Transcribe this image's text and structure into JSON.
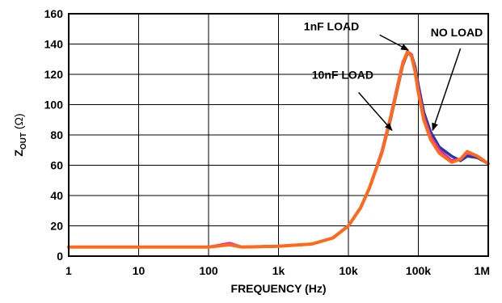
{
  "chart_data": {
    "type": "line",
    "title": "",
    "xlabel": "FREQUENCY (Hz)",
    "ylabel": {
      "main": "Z",
      "sub": "OUT",
      "unit": " (Ω)"
    },
    "x_scale": "log",
    "xlim": [
      1,
      1000000
    ],
    "ylim": [
      0,
      160
    ],
    "grid": true,
    "x_ticks": [
      {
        "value": 1,
        "label": "1"
      },
      {
        "value": 10,
        "label": "10"
      },
      {
        "value": 100,
        "label": "100"
      },
      {
        "value": 1000,
        "label": "1k"
      },
      {
        "value": 10000,
        "label": "10k"
      },
      {
        "value": 100000,
        "label": "100k"
      },
      {
        "value": 1000000,
        "label": "1M"
      }
    ],
    "y_ticks": [
      0,
      20,
      40,
      60,
      80,
      100,
      120,
      140,
      160
    ],
    "series": [
      {
        "name": "NO LOAD",
        "color": "#1f3fa0",
        "x": [
          1,
          10,
          100,
          200,
          300,
          1000,
          3000,
          6000,
          10000,
          15000,
          20000,
          30000,
          40000,
          50000,
          60000,
          70000,
          80000,
          90000,
          100000,
          120000,
          150000,
          200000,
          300000,
          400000,
          500000,
          700000,
          1000000
        ],
        "y": [
          6,
          6,
          6,
          8,
          6,
          6.5,
          8,
          12,
          20,
          32,
          45,
          68,
          90,
          110,
          126,
          134,
          133,
          125,
          113,
          95,
          82,
          72,
          66,
          63,
          66,
          65,
          61
        ]
      },
      {
        "name": "1nF LOAD",
        "color": "#e020c8",
        "x": [
          1,
          10,
          100,
          200,
          300,
          1000,
          3000,
          6000,
          10000,
          15000,
          20000,
          30000,
          40000,
          50000,
          60000,
          70000,
          80000,
          90000,
          100000,
          120000,
          150000,
          200000,
          300000,
          400000,
          500000,
          700000,
          1000000
        ],
        "y": [
          6,
          6,
          6,
          8.5,
          6,
          6.5,
          8,
          12,
          20,
          32,
          45,
          69,
          92,
          112,
          128,
          135,
          133,
          123,
          110,
          92,
          79,
          70,
          63,
          64,
          68,
          66,
          61
        ]
      },
      {
        "name": "10nF LOAD",
        "color": "#ff6a1a",
        "x": [
          1,
          10,
          100,
          200,
          300,
          1000,
          3000,
          6000,
          10000,
          15000,
          20000,
          30000,
          40000,
          50000,
          60000,
          70000,
          80000,
          90000,
          100000,
          120000,
          150000,
          200000,
          300000,
          400000,
          500000,
          700000,
          1000000
        ],
        "y": [
          6,
          6,
          6,
          7.5,
          6,
          6.5,
          8,
          12,
          20,
          32,
          45,
          68,
          91,
          111,
          127,
          135,
          132,
          122,
          108,
          90,
          77,
          68,
          62,
          64,
          69,
          66,
          61
        ]
      }
    ],
    "annotations": [
      {
        "text": "1nF LOAD",
        "label_at": [
          2300,
          149
        ],
        "arrow_from": [
          28000,
          146
        ],
        "arrow_to": [
          72000,
          136
        ]
      },
      {
        "text": "NO LOAD",
        "label_at": [
          150000,
          145
        ],
        "arrow_from": [
          400000,
          137
        ],
        "arrow_to": [
          160000,
          83
        ]
      },
      {
        "text": "10nF LOAD",
        "label_at": [
          3000,
          117
        ],
        "arrow_from": [
          14000,
          108
        ],
        "arrow_to": [
          42000,
          83
        ]
      }
    ]
  }
}
